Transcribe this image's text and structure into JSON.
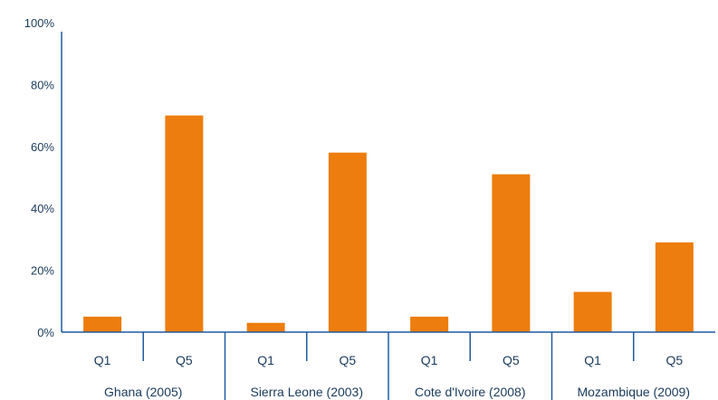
{
  "chart_data": {
    "type": "bar",
    "title": "",
    "xlabel": "",
    "ylabel": "",
    "ylim": [
      0,
      100
    ],
    "y_ticks": [
      "0%",
      "20%",
      "40%",
      "60%",
      "80%",
      "100%"
    ],
    "grid": false,
    "bar_color": "#ed7d0e",
    "axis_color": "#1f5aa0",
    "groups": [
      {
        "label": "Ghana (2005)",
        "categories": [
          "Q1",
          "Q5"
        ],
        "values": [
          5,
          70
        ]
      },
      {
        "label": "Sierra Leone (2003)",
        "categories": [
          "Q1",
          "Q5"
        ],
        "values": [
          3,
          58
        ]
      },
      {
        "label": "Cote d'Ivoire (2008)",
        "categories": [
          "Q1",
          "Q5"
        ],
        "values": [
          5,
          51
        ]
      },
      {
        "label": "Mozambique (2009)",
        "categories": [
          "Q1",
          "Q5"
        ],
        "values": [
          13,
          29
        ]
      }
    ]
  }
}
